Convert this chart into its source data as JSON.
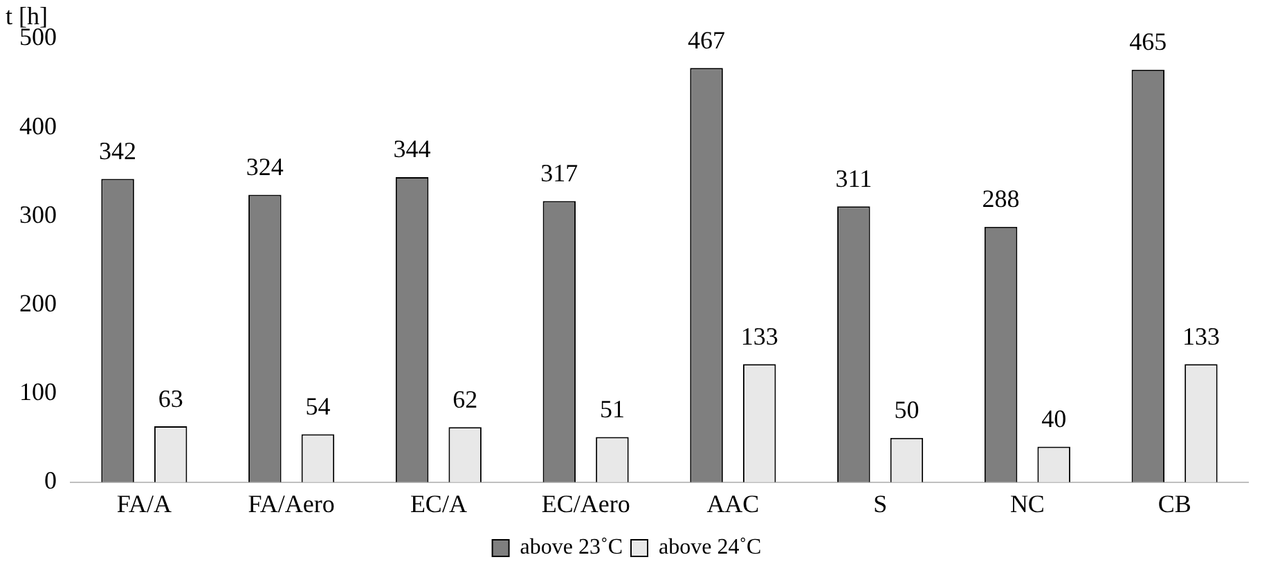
{
  "chart_data": {
    "type": "bar",
    "ylabel": "t [h]",
    "categories": [
      "FA/A",
      "FA/Aero",
      "EC/A",
      "EC/Aero",
      "AAC",
      "S",
      "NC",
      "CB"
    ],
    "series": [
      {
        "name": "above 23˚C",
        "color": "#7f7f7f",
        "values": [
          342,
          324,
          344,
          317,
          467,
          311,
          288,
          465
        ]
      },
      {
        "name": "above 24˚C",
        "color": "#e8e8e8",
        "values": [
          63,
          54,
          62,
          51,
          133,
          50,
          40,
          133
        ]
      }
    ],
    "ylim": [
      0,
      500
    ],
    "yticks": [
      0,
      100,
      200,
      300,
      400,
      500
    ],
    "grid": false,
    "legend": "bottom",
    "data_labels": true
  }
}
